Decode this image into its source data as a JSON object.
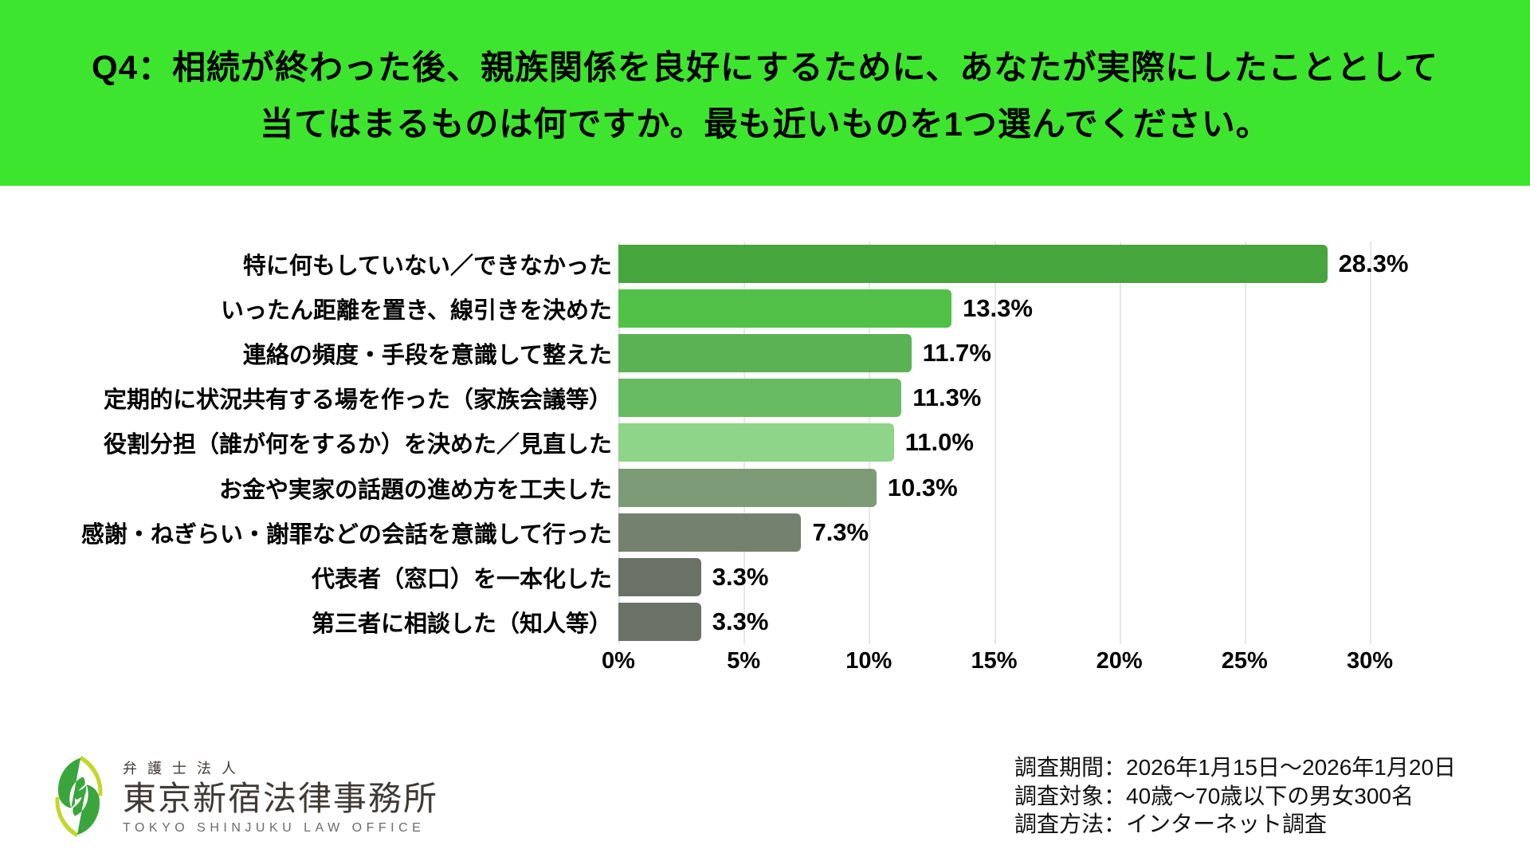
{
  "header": {
    "bg_color": "#3ee52e",
    "question_line1": "Q4：相続が終わった後、親族関係を良好にするために、あなたが実際にしたこととして",
    "question_line2": "当てはまるものは何ですか。最も近いものを1つ選んでください。"
  },
  "chart_data": {
    "type": "bar",
    "orientation": "horizontal",
    "categories": [
      "特に何もしていない／できなかった",
      "いったん距離を置き、線引きを決めた",
      "連絡の頻度・手段を意識して整えた",
      "定期的に状況共有する場を作った（家族会議等）",
      "役割分担（誰が何をするか）を決めた／見直した",
      "お金や実家の話題の進め方を工夫した",
      "感謝・ねぎらい・謝罪などの会話を意識して行った",
      "代表者（窓口）を一本化した",
      "第三者に相談した（知人等）"
    ],
    "values": [
      28.3,
      13.3,
      11.7,
      11.3,
      11.0,
      10.3,
      7.3,
      3.3,
      3.3
    ],
    "value_labels": [
      "28.3%",
      "13.3%",
      "11.7%",
      "11.3%",
      "11.0%",
      "10.3%",
      "7.3%",
      "3.3%",
      "3.3%"
    ],
    "bar_colors": [
      "#46a53c",
      "#50c146",
      "#5bb254",
      "#68bb62",
      "#8ed489",
      "#7c9b76",
      "#75816f",
      "#6a7268",
      "#6a7268"
    ],
    "x_ticks": [
      "0%",
      "5%",
      "10%",
      "15%",
      "20%",
      "25%",
      "30%"
    ],
    "x_tick_values": [
      0,
      5,
      10,
      15,
      20,
      25,
      30
    ],
    "xlim": [
      0,
      30
    ],
    "grid": true,
    "legend": "none",
    "title": "",
    "xlabel": "",
    "ylabel": ""
  },
  "footer": {
    "logo": {
      "company_type": "弁護士法人",
      "company_name": "東京新宿法律事務所",
      "company_name_en": "TOKYO SHINJUKU LAW OFFICE",
      "mark_green": "#3aa53c",
      "mark_yellow": "#c4d62d"
    },
    "survey": {
      "period": "調査期間：2026年1月15日～2026年1月20日",
      "subjects": "調査対象：40歳～70歳以下の男女300名",
      "method": "調査方法：インターネット調査"
    }
  }
}
